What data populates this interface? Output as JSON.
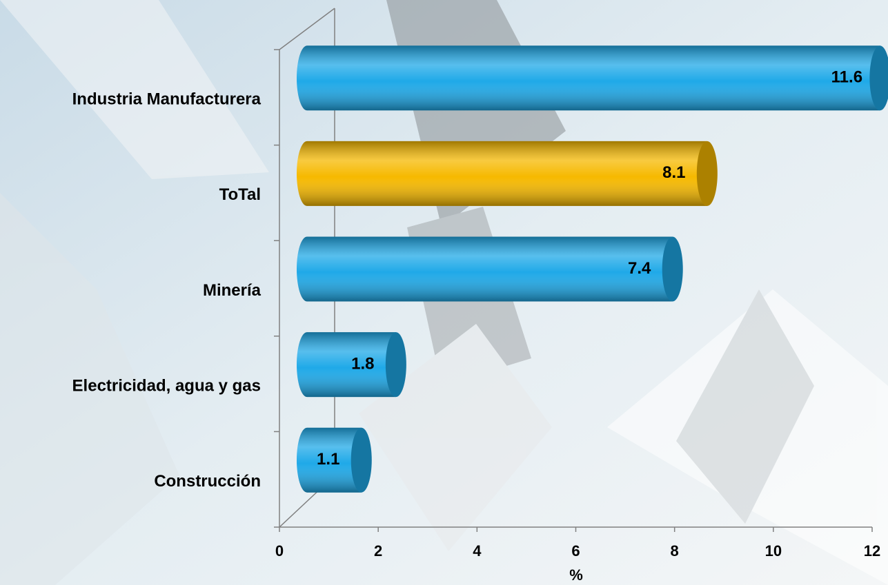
{
  "chart_data": {
    "type": "bar",
    "orientation": "horizontal",
    "categories": [
      "Industria Manufacturera",
      "ToTal",
      "Minería",
      "Electricidad, agua y gas",
      "Construcción"
    ],
    "values": [
      11.6,
      8.1,
      7.4,
      1.8,
      1.1
    ],
    "colors": [
      "#1fa9e8",
      "#f6b900",
      "#1fa9e8",
      "#1fa9e8",
      "#1fa9e8"
    ],
    "xlabel": "%",
    "xlim": [
      0,
      12
    ],
    "xticks": [
      0,
      2,
      4,
      6,
      8,
      10,
      12
    ]
  }
}
